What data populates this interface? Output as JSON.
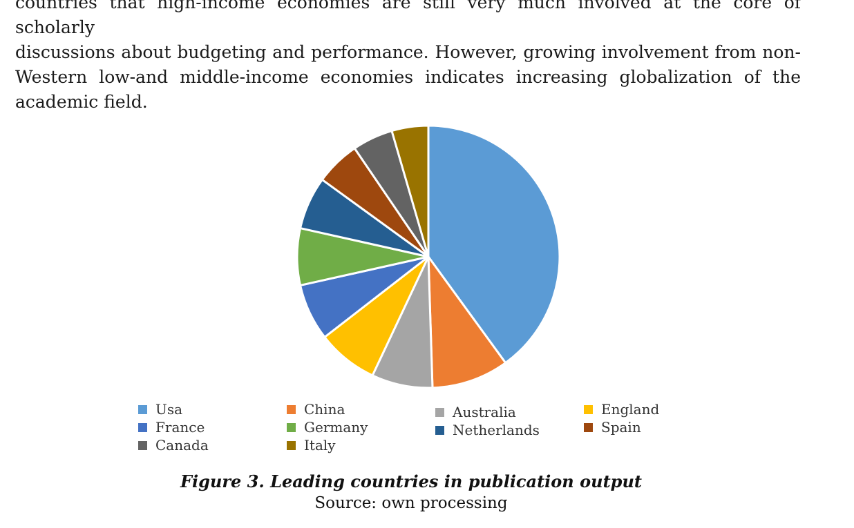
{
  "document": {
    "paragraph_lines": [
      "countries that high-income economies are still very much involved at the core of scholarly",
      "discussions about budgeting and performance. However, growing involvement from non-",
      "Western low-and middle-income economies indicates increasing globalization of the",
      "academic field."
    ],
    "caption": "Figure 3. Leading countries in publication output",
    "source": "Source: own processing"
  },
  "chart_data": {
    "type": "pie",
    "title": "",
    "legend_position": "bottom",
    "slices": [
      {
        "label": "Usa",
        "value": 40,
        "color": "#5B9BD5"
      },
      {
        "label": "China",
        "value": 9.5,
        "color": "#ED7D31"
      },
      {
        "label": "Australia",
        "value": 7.5,
        "color": "#A5A5A5"
      },
      {
        "label": "England",
        "value": 7.5,
        "color": "#FFC000"
      },
      {
        "label": "France",
        "value": 7,
        "color": "#4472C4"
      },
      {
        "label": "Germany",
        "value": 7,
        "color": "#70AD47"
      },
      {
        "label": "Netherlands",
        "value": 6.5,
        "color": "#255E91"
      },
      {
        "label": "Spain",
        "value": 5.5,
        "color": "#9E480E"
      },
      {
        "label": "Canada",
        "value": 5,
        "color": "#636363"
      },
      {
        "label": "Italy",
        "value": 4.5,
        "color": "#997300"
      }
    ]
  }
}
